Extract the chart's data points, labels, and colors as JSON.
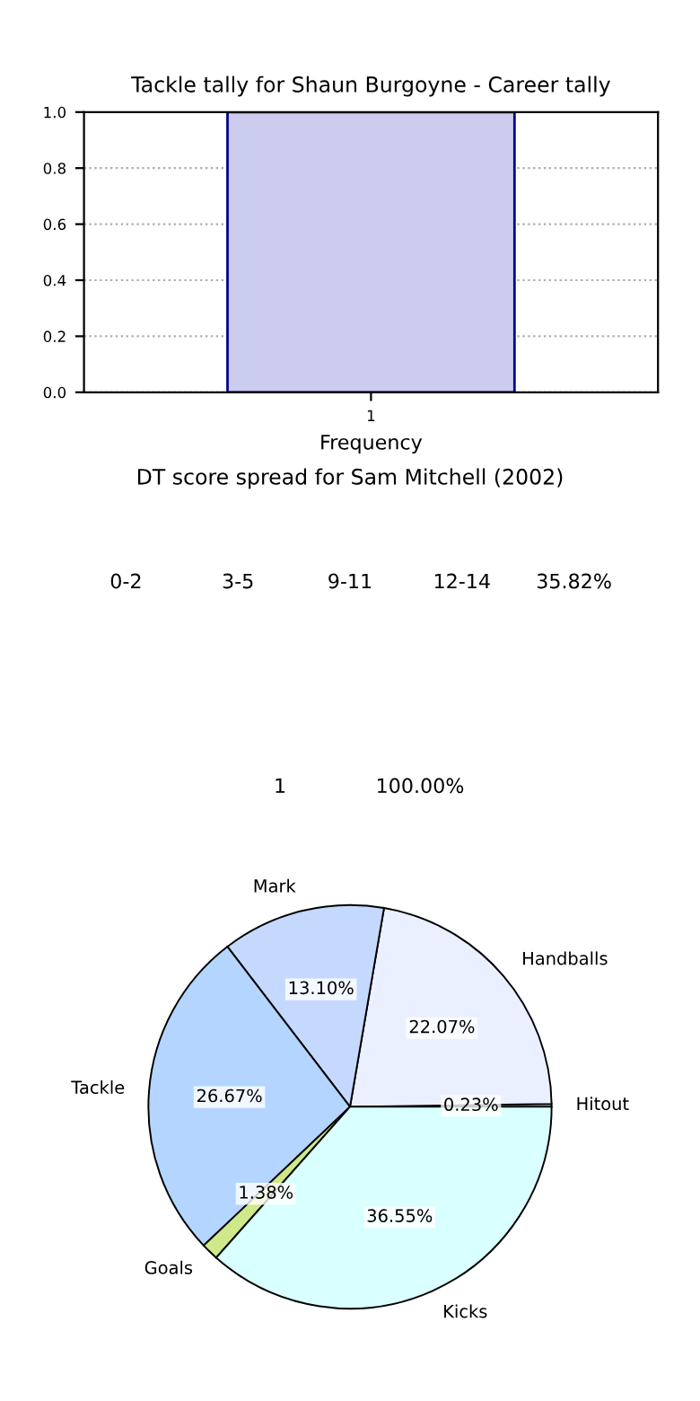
{
  "chart_data": [
    {
      "type": "bar",
      "title": "Tackle tally for Shaun Burgoyne - Career tally",
      "xlabel": "Frequency",
      "categories": [
        "1"
      ],
      "values": [
        1.0
      ],
      "color": "#ccccee",
      "ylim": [
        0,
        1.0
      ],
      "yticks": [
        {
          "value": 0.0,
          "label": "0.0"
        },
        0.2,
        0.4,
        0.6,
        0.8,
        {
          "value": 1.0,
          "label": "1.0"
        }
      ],
      "grid": true
    },
    {
      "type": "other",
      "title": "DT score spread for Sam Mitchell (2002)",
      "annotations": [
        "0-2",
        "3-5",
        "9-11",
        "12-14",
        "35.82%"
      ]
    },
    {
      "type": "other",
      "annotations": [
        "1",
        "100.00%"
      ]
    },
    {
      "type": "pie",
      "categories": [
        "Hitout",
        "Handballs",
        "Mark",
        "Tackle",
        "Goals",
        "Kicks"
      ],
      "values": [
        0.23,
        22.07,
        13.1,
        26.67,
        1.38,
        36.55
      ],
      "colors": [
        "#ffffff",
        "#eaf0ff",
        "#c5d9ff",
        "#b3d5ff",
        "#cfe88a",
        "#d9ffff"
      ],
      "value_labels": [
        "0.23%",
        "22.07%",
        "13.10%",
        "26.67%",
        "1.38%",
        "36.55%"
      ]
    }
  ]
}
